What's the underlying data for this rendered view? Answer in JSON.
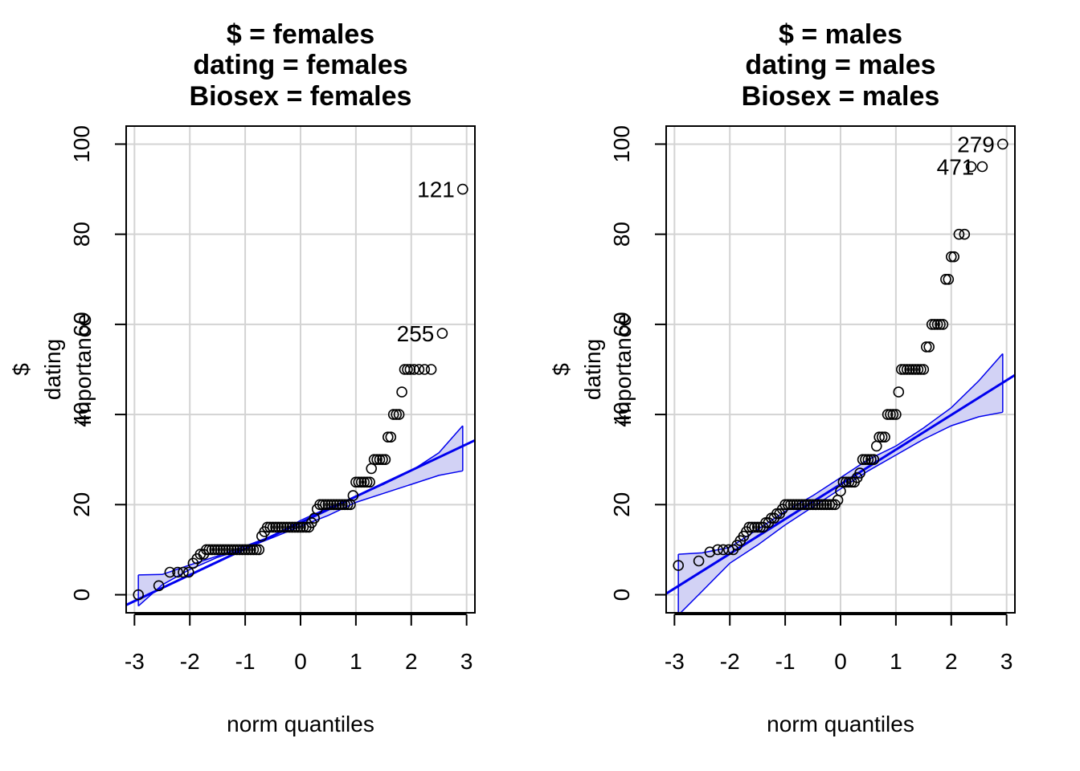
{
  "chart_data": [
    {
      "type": "scatter",
      "title_lines": [
        "$ = females",
        "dating = females",
        "Biosex = females"
      ],
      "xlabel": "norm quantiles",
      "ylabel_lines": [
        "$",
        "dating",
        "importance"
      ],
      "xlim": [
        -3.15,
        3.15
      ],
      "ylim": [
        -4,
        104
      ],
      "x_ticks": [
        -3,
        -2,
        -1,
        0,
        1,
        2,
        3
      ],
      "y_ticks": [
        0,
        20,
        40,
        60,
        80,
        100
      ],
      "grid": true,
      "colors": {
        "points": "#000000",
        "line": "#0000ee",
        "band": "#d2d2f5",
        "grid": "#d3d3d3"
      },
      "points": {
        "x": [
          -2.93,
          -2.56,
          -2.36,
          -2.22,
          -2.12,
          -2.02,
          -1.94,
          -1.87,
          -1.81,
          -1.75,
          -1.7,
          -1.65,
          -1.6,
          -1.55,
          -1.5,
          -1.45,
          -1.4,
          -1.35,
          -1.3,
          -1.25,
          -1.2,
          -1.15,
          -1.1,
          -1.05,
          -1.0,
          -0.95,
          -0.9,
          -0.85,
          -0.8,
          -0.75,
          -0.7,
          -0.65,
          -0.6,
          -0.55,
          -0.5,
          -0.45,
          -0.4,
          -0.35,
          -0.3,
          -0.25,
          -0.2,
          -0.15,
          -0.1,
          -0.05,
          0.0,
          0.05,
          0.1,
          0.15,
          0.2,
          0.25,
          0.3,
          0.35,
          0.4,
          0.45,
          0.5,
          0.55,
          0.6,
          0.65,
          0.7,
          0.75,
          0.8,
          0.85,
          0.9,
          0.95,
          1.0,
          1.05,
          1.1,
          1.15,
          1.2,
          1.25,
          1.28,
          1.33,
          1.38,
          1.43,
          1.48,
          1.53,
          1.58,
          1.63,
          1.68,
          1.73,
          1.78,
          1.83,
          1.88,
          1.93,
          1.98,
          2.05,
          2.14,
          2.24,
          2.36,
          2.56,
          2.93
        ],
        "y": [
          0,
          2,
          5,
          5,
          5,
          5,
          7,
          8,
          9,
          9,
          10,
          10,
          10,
          10,
          10,
          10,
          10,
          10,
          10,
          10,
          10,
          10,
          10,
          10,
          10,
          10,
          10,
          10,
          10,
          10,
          13,
          14,
          15,
          15,
          15,
          15,
          15,
          15,
          15,
          15,
          15,
          15,
          15,
          15,
          15,
          15,
          15,
          15,
          16,
          17,
          19,
          20,
          20,
          20,
          20,
          20,
          20,
          20,
          20,
          20,
          20,
          20,
          20,
          22,
          25,
          25,
          25,
          25,
          25,
          25,
          28,
          30,
          30,
          30,
          30,
          30,
          35,
          35,
          40,
          40,
          40,
          45,
          50,
          50,
          50,
          50,
          50,
          50,
          50,
          58,
          90
        ]
      },
      "labeled_points": [
        {
          "label": "121",
          "x": 2.93,
          "y": 90
        },
        {
          "label": "255",
          "x": 2.56,
          "y": 58
        }
      ],
      "fit_line": {
        "intercept": 16.0,
        "slope": 5.8
      },
      "envelope": {
        "x": [
          -2.93,
          -2.5,
          -2.0,
          -1.5,
          -1.0,
          -0.5,
          0.0,
          0.5,
          1.0,
          1.5,
          2.0,
          2.5,
          2.93
        ],
        "lower": [
          -2.5,
          2.2,
          5.6,
          8.3,
          10.3,
          12.7,
          15.2,
          17.6,
          20.5,
          22.5,
          24.5,
          26.5,
          27.5
        ],
        "upper": [
          4.4,
          4.5,
          6.6,
          8.6,
          10.8,
          13.1,
          16.5,
          19.3,
          21.8,
          24.5,
          27.5,
          31.5,
          37.5
        ]
      }
    },
    {
      "type": "scatter",
      "title_lines": [
        "$ = males",
        "dating = males",
        "Biosex = males"
      ],
      "xlabel": "norm quantiles",
      "ylabel_lines": [
        "$",
        "dating",
        "importance"
      ],
      "xlim": [
        -3.15,
        3.15
      ],
      "ylim": [
        -4,
        104
      ],
      "x_ticks": [
        -3,
        -2,
        -1,
        0,
        1,
        2,
        3
      ],
      "y_ticks": [
        0,
        20,
        40,
        60,
        80,
        100
      ],
      "grid": true,
      "colors": {
        "points": "#000000",
        "line": "#0000ee",
        "band": "#d2d2f5",
        "grid": "#d3d3d3"
      },
      "points": {
        "x": [
          -2.93,
          -2.56,
          -2.36,
          -2.22,
          -2.12,
          -2.02,
          -1.94,
          -1.87,
          -1.81,
          -1.75,
          -1.7,
          -1.65,
          -1.6,
          -1.55,
          -1.5,
          -1.45,
          -1.4,
          -1.35,
          -1.3,
          -1.25,
          -1.2,
          -1.15,
          -1.1,
          -1.05,
          -1.0,
          -0.95,
          -0.9,
          -0.85,
          -0.8,
          -0.75,
          -0.7,
          -0.65,
          -0.6,
          -0.55,
          -0.5,
          -0.45,
          -0.4,
          -0.35,
          -0.3,
          -0.25,
          -0.2,
          -0.15,
          -0.1,
          -0.05,
          0.0,
          0.05,
          0.1,
          0.15,
          0.2,
          0.25,
          0.3,
          0.35,
          0.4,
          0.45,
          0.5,
          0.55,
          0.6,
          0.65,
          0.7,
          0.75,
          0.8,
          0.85,
          0.9,
          0.95,
          1.0,
          1.05,
          1.1,
          1.15,
          1.2,
          1.25,
          1.3,
          1.35,
          1.4,
          1.45,
          1.5,
          1.55,
          1.6,
          1.65,
          1.7,
          1.75,
          1.8,
          1.85,
          1.9,
          1.95,
          2.0,
          2.05,
          2.14,
          2.24,
          2.36,
          2.56,
          2.93
        ],
        "y": [
          6.5,
          7.5,
          9.5,
          10,
          10,
          10,
          10,
          11,
          12,
          13,
          14,
          15,
          15,
          15,
          15,
          15,
          15,
          16,
          16,
          17,
          17,
          18,
          18,
          19,
          20,
          20,
          20,
          20,
          20,
          20,
          20,
          20,
          20,
          20,
          20,
          20,
          20,
          20,
          20,
          20,
          20,
          20,
          20,
          21,
          23,
          25,
          25,
          25,
          25,
          25,
          26,
          27,
          30,
          30,
          30,
          30,
          30,
          33,
          35,
          35,
          35,
          40,
          40,
          40,
          40,
          45,
          50,
          50,
          50,
          50,
          50,
          50,
          50,
          50,
          50,
          55,
          55,
          60,
          60,
          60,
          60,
          60,
          70,
          70,
          75,
          75,
          80,
          80,
          95,
          95,
          100
        ],
        "dense_run_note": ""
      },
      "labeled_points": [
        {
          "label": "279",
          "x": 2.93,
          "y": 100
        },
        {
          "label": "471",
          "x": 2.56,
          "y": 95
        }
      ],
      "fit_line": {
        "intercept": 24.5,
        "slope": 7.7
      },
      "envelope": {
        "x": [
          -2.93,
          -2.5,
          -2.0,
          -1.5,
          -1.0,
          -0.5,
          0.0,
          0.5,
          1.0,
          1.5,
          2.0,
          2.5,
          2.93
        ],
        "lower": [
          -4.5,
          0.8,
          7.0,
          11.0,
          15.5,
          19.5,
          23.5,
          27.5,
          31.0,
          34.5,
          37.5,
          39.5,
          40.5
        ],
        "upper": [
          9.0,
          9.3,
          10.5,
          14.5,
          18.5,
          22.0,
          26.0,
          30.0,
          33.0,
          37.0,
          41.5,
          47.5,
          53.5
        ]
      }
    }
  ]
}
